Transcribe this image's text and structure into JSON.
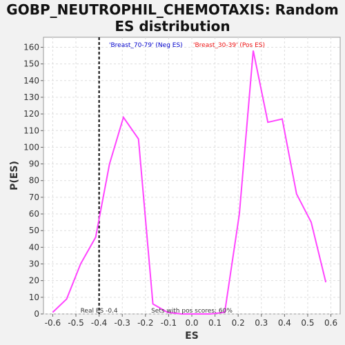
{
  "chart_data": {
    "type": "line",
    "title": "GOBP_NEUTROPHIL_CHEMOTAXIS: Random ES distribution",
    "xlabel": "ES",
    "ylabel": "P(ES)",
    "xlim": [
      -0.64,
      0.64
    ],
    "ylim": [
      0,
      166
    ],
    "x_ticks": [
      -0.6,
      -0.5,
      -0.4,
      -0.3,
      -0.2,
      -0.1,
      0.0,
      0.1,
      0.2,
      0.3,
      0.4,
      0.5,
      0.6
    ],
    "x_tick_labels": [
      "-0.6",
      "-0.5",
      "-0.4",
      "-0.3",
      "-0.2",
      "-0.1",
      "0.0",
      "0.1",
      "0.2",
      "0.3",
      "0.4",
      "0.5",
      "0.6"
    ],
    "y_ticks": [
      0,
      10,
      20,
      30,
      40,
      50,
      60,
      70,
      80,
      90,
      100,
      110,
      120,
      130,
      140,
      150,
      160
    ],
    "grid": true,
    "series": [
      {
        "color": "#ff44ff",
        "x": [
          -0.6,
          -0.54,
          -0.48,
          -0.415,
          -0.355,
          -0.295,
          -0.23,
          -0.168,
          -0.105,
          -0.045,
          0.015,
          0.08,
          0.142,
          0.205,
          0.265,
          0.328,
          0.39,
          0.452,
          0.515,
          0.578
        ],
        "y": [
          1,
          9,
          30,
          46,
          90,
          118,
          105,
          6,
          1,
          0,
          0,
          0,
          1,
          60,
          158,
          115,
          117,
          72,
          55,
          19
        ]
      }
    ],
    "real_es": -0.4,
    "annotations": {
      "neg_label": "'Breast_70-79' (Neg ES)",
      "pos_label": "'Breast_30-39' (Pos ES)",
      "real_es_label": "Real ES -0.4",
      "pos_scores_label": "Sets with pos scores: 60%"
    },
    "colors": {
      "neg": "#0000cc",
      "pos": "#ee1111",
      "line": "#ff44ff",
      "realline": "#000000"
    }
  }
}
